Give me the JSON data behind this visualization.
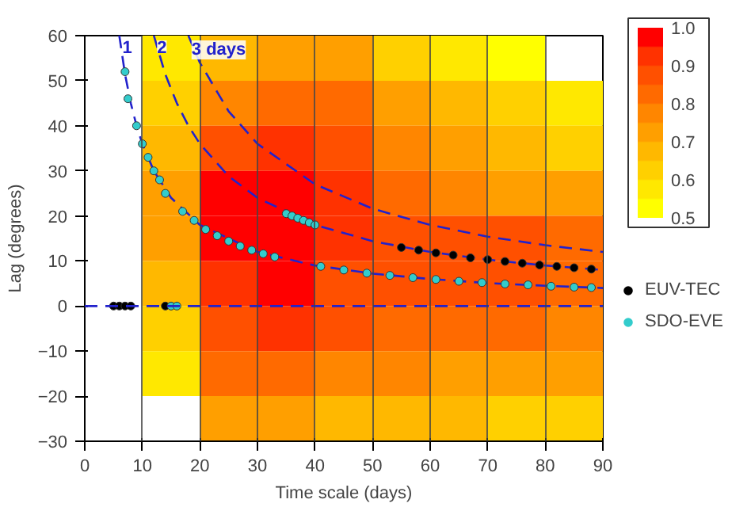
{
  "chart_data": {
    "type": "scatter",
    "xlabel": "Time scale (days)",
    "ylabel": "Lag (degrees)",
    "xlim": [
      0,
      90
    ],
    "ylim": [
      -30,
      60
    ],
    "xticks": [
      0,
      10,
      20,
      30,
      40,
      50,
      60,
      70,
      80,
      90
    ],
    "yticks": [
      -30,
      -20,
      -10,
      0,
      10,
      20,
      30,
      40,
      50,
      60
    ],
    "grid": "x",
    "legend": "right",
    "clim": [
      0.5,
      1.0
    ],
    "cticks": [
      0.5,
      0.6,
      0.7,
      0.8,
      0.9,
      {
        "value": 1.0,
        "label": "1.0"
      }
    ],
    "colors": [
      "#ffff00",
      "#ffe800",
      "#ffd000",
      "#ffb800",
      "#ff9f00",
      "#ff8600",
      "#ff6a00",
      "#ff5000",
      "#ff3200",
      "#ff0000"
    ],
    "ref_lines": [
      {
        "axis": "y",
        "value": 0,
        "color": "#2222cc",
        "line_style": "dashed"
      }
    ],
    "annotations": [
      {
        "text": "1",
        "x": 6,
        "y": 60
      },
      {
        "text": "2",
        "x": 12,
        "y": 60
      },
      {
        "text": "3 days",
        "x": 18,
        "y": 60
      }
    ],
    "series": [
      {
        "marker": "square",
        "x": [
          15,
          25,
          35,
          45,
          55,
          65,
          75,
          15,
          25,
          35,
          45,
          55,
          65,
          75,
          85,
          15,
          25,
          35,
          45,
          55,
          65,
          75,
          85,
          15,
          25,
          35,
          45,
          55,
          65,
          75,
          85,
          15,
          25,
          35,
          45,
          55,
          65,
          75,
          85,
          15,
          25,
          35,
          45,
          55,
          65,
          75,
          85,
          15,
          25,
          35,
          45,
          55,
          65,
          75,
          85,
          15,
          25,
          35,
          45,
          55,
          65,
          75,
          85,
          25,
          35,
          45,
          55,
          65,
          75,
          85
        ],
        "values": [
          55,
          55,
          55,
          55,
          55,
          55,
          55,
          45,
          45,
          45,
          45,
          45,
          45,
          45,
          45,
          35,
          35,
          35,
          35,
          35,
          35,
          35,
          35,
          25,
          25,
          25,
          25,
          25,
          25,
          25,
          25,
          15,
          15,
          15,
          15,
          15,
          15,
          15,
          15,
          5,
          5,
          5,
          5,
          5,
          5,
          5,
          5,
          -5,
          -5,
          -5,
          -5,
          -5,
          -5,
          -5,
          -5,
          -15,
          -15,
          -15,
          -15,
          -15,
          -15,
          -15,
          -15,
          -25,
          -25,
          -25,
          -25,
          -25,
          -25,
          -25
        ],
        "colors": [
          "#ffe800",
          "#ffb800",
          "#ff9f00",
          "#ff9f00",
          "#ffd000",
          "#ffe800",
          "#ffff00",
          "#ffd000",
          "#ff8600",
          "#ff6a00",
          "#ff6a00",
          "#ff9f00",
          "#ffb800",
          "#ffd000",
          "#ffe800",
          "#ffb800",
          "#ff5000",
          "#ff3200",
          "#ff5000",
          "#ff8600",
          "#ff9f00",
          "#ffb800",
          "#ffd000",
          "#ff9f00",
          "#ff0000",
          "#ff0000",
          "#ff3200",
          "#ff6a00",
          "#ff8600",
          "#ff9f00",
          "#ff9f00",
          "#ff9f00",
          "#ff0000",
          "#ff0000",
          "#ff3200",
          "#ff5000",
          "#ff5000",
          "#ff5000",
          "#ff6a00",
          "#ffb800",
          "#ff3200",
          "#ff0000",
          "#ff5000",
          "#ff5000",
          "#ff5000",
          "#ff5000",
          "#ff6a00",
          "#ffd000",
          "#ff5000",
          "#ff3200",
          "#ff5000",
          "#ff6a00",
          "#ff6a00",
          "#ff6a00",
          "#ff8600",
          "#ffe800",
          "#ff6a00",
          "#ff6a00",
          "#ff8600",
          "#ff8600",
          "#ff9f00",
          "#ff9f00",
          "#ff9f00",
          "#ff9f00",
          "#ff9f00",
          "#ffb800",
          "#ffb800",
          "#ffb800",
          "#ffd000",
          "#ffd000"
        ]
      },
      {
        "type": "line",
        "color": "#2222cc",
        "line_style": "dashed",
        "x": [
          6,
          7,
          8,
          9,
          10,
          12,
          15,
          20,
          30,
          40,
          50,
          60,
          70,
          80,
          90
        ],
        "values": [
          60,
          51.4,
          45,
          40,
          36,
          30,
          24,
          18,
          12,
          9,
          7.2,
          6,
          5.1,
          4.5,
          4
        ]
      },
      {
        "type": "line",
        "color": "#2222cc",
        "line_style": "dashed",
        "x": [
          12,
          14,
          16,
          18,
          20,
          25,
          30,
          40,
          50,
          60,
          70,
          80,
          90
        ],
        "values": [
          60,
          51.4,
          45,
          40,
          36,
          28.8,
          24,
          18,
          14.4,
          12,
          10.3,
          9,
          8
        ]
      },
      {
        "type": "line",
        "color": "#2222cc",
        "line_style": "dashed",
        "x": [
          18,
          20,
          25,
          30,
          40,
          50,
          60,
          70,
          80,
          90
        ],
        "values": [
          60,
          54,
          43.2,
          36,
          27,
          21.6,
          18,
          15.4,
          13.5,
          12
        ]
      },
      {
        "name": "EUV-TEC",
        "color": "#000000",
        "marker": "circle",
        "x": [
          5,
          6,
          7,
          8,
          14,
          55,
          58,
          61,
          64,
          67,
          70,
          73,
          76,
          79,
          82,
          85,
          88
        ],
        "values": [
          0,
          0,
          0,
          0,
          0,
          13,
          12.4,
          11.8,
          11.3,
          10.7,
          10.3,
          9.9,
          9.5,
          9.1,
          8.8,
          8.5,
          8.2
        ]
      },
      {
        "name": "SDO-EVE",
        "color": "#33cccc",
        "marker": "circle",
        "x": [
          7,
          7.5,
          9,
          10,
          11,
          12,
          13,
          14,
          15,
          16,
          17,
          19,
          21,
          23,
          25,
          27,
          29,
          31,
          33,
          35,
          36,
          37,
          38,
          39,
          40,
          41,
          45,
          49,
          53,
          57,
          61,
          65,
          69,
          73,
          77,
          81,
          85,
          88
        ],
        "values": [
          52,
          46,
          40,
          36,
          33,
          30,
          28,
          25,
          0,
          0,
          21,
          19,
          17,
          15.6,
          14.4,
          13.3,
          12.4,
          11.6,
          10.9,
          20.5,
          20,
          19.5,
          19,
          18.5,
          18,
          8.8,
          8,
          7.3,
          6.8,
          6.3,
          5.9,
          5.5,
          5.2,
          4.9,
          4.7,
          4.4,
          4.2,
          4.1
        ]
      }
    ]
  }
}
